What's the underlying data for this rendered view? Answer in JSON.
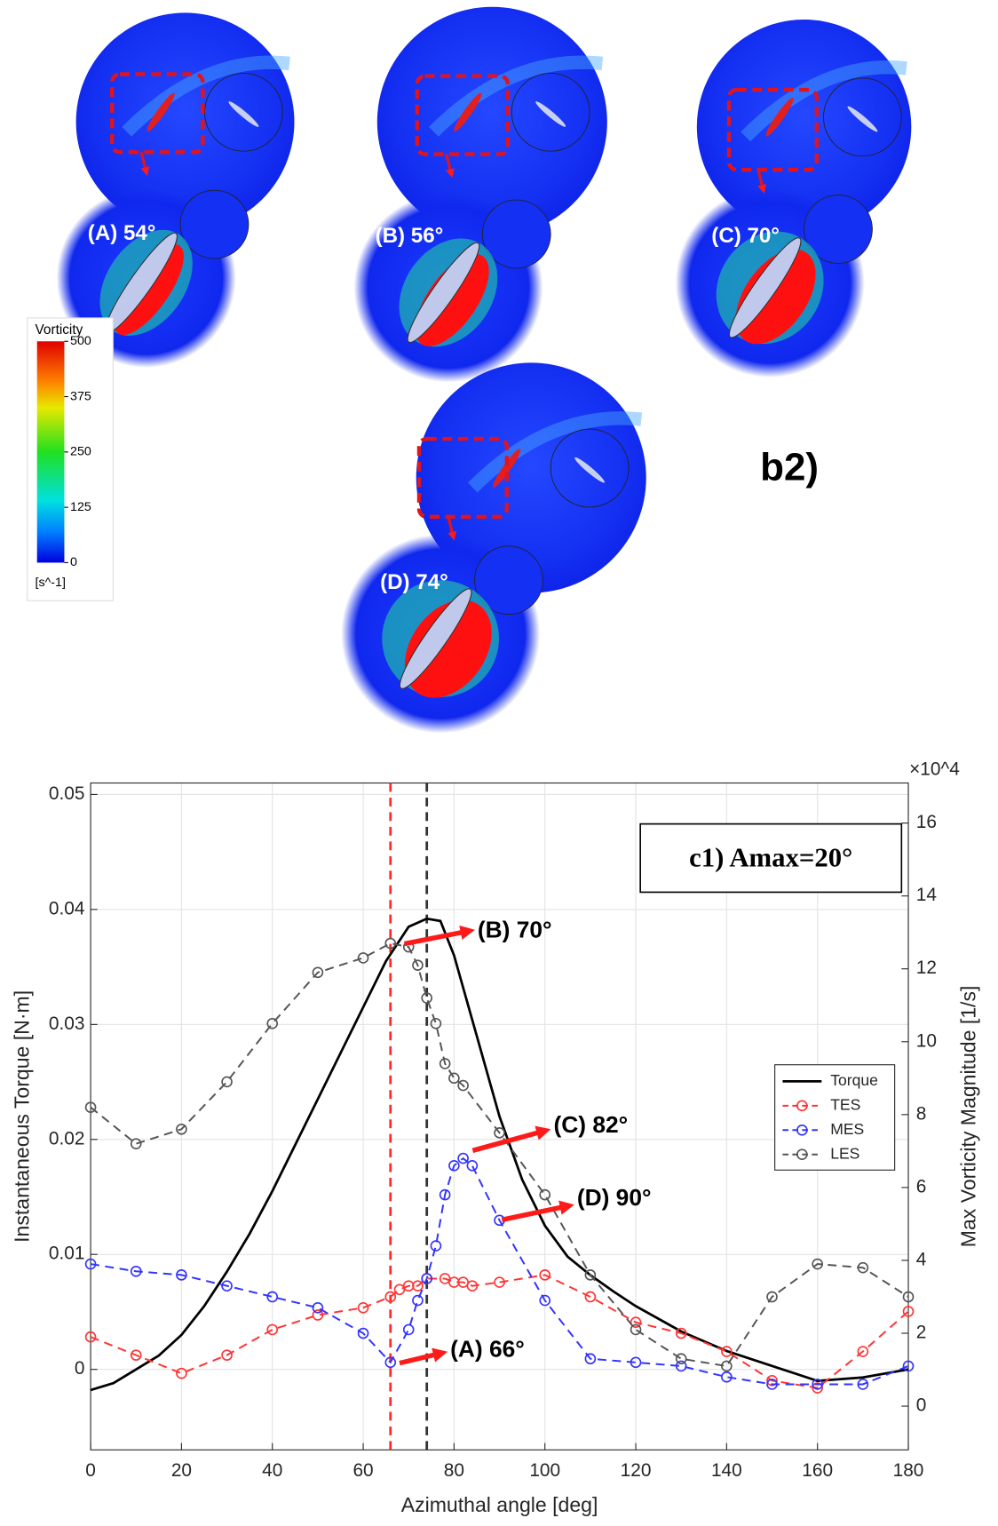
{
  "figure_b2": {
    "panel_label": "b2)",
    "panels": [
      {
        "label": "(A) 54°"
      },
      {
        "label": "(B) 56°"
      },
      {
        "label": "(C) 70°"
      },
      {
        "label": "(D) 74°"
      }
    ],
    "colorbar": {
      "title": "Vorticity",
      "unit": "[s^-1]",
      "lim": [
        0,
        500
      ],
      "ticks": [
        0,
        125,
        250,
        375,
        500
      ]
    }
  },
  "chart_data": {
    "type": "line",
    "annotation_box": "c1) Amax=20°",
    "xlabel": "Azimuthal angle [deg]",
    "ylabel": "Instantaneous Torque [N·m]",
    "y2label": "Max Vorticity Magnitude [1/s]",
    "y2_multiplier": "×10^4",
    "xlim": [
      0,
      180
    ],
    "xticks": [
      0,
      20,
      40,
      60,
      80,
      100,
      120,
      140,
      160,
      180
    ],
    "ylim": [
      -0.007,
      0.051
    ],
    "yticks": [
      0,
      0.01,
      0.02,
      0.03,
      0.04,
      0.05
    ],
    "y2lim": [
      -1.2,
      17.1
    ],
    "y2ticks": [
      0,
      2,
      4,
      6,
      8,
      10,
      12,
      14,
      16
    ],
    "grid": true,
    "legend": "east",
    "vlines": [
      {
        "x": 66,
        "color": "#ff2a2a"
      },
      {
        "x": 74,
        "color": "#333333"
      }
    ],
    "annotations": [
      "(B) 70°",
      "(C) 82°",
      "(D) 90°",
      "(A) 66°"
    ],
    "series": [
      {
        "name": "Torque",
        "color": "#000000",
        "axis": "y",
        "x": [
          0,
          5,
          10,
          15,
          20,
          25,
          30,
          35,
          40,
          45,
          50,
          55,
          60,
          65,
          70,
          74,
          77,
          80,
          85,
          90,
          95,
          100,
          105,
          110,
          115,
          120,
          130,
          140,
          150,
          160,
          170,
          180
        ],
        "values": [
          -0.0018,
          -0.0012,
          0.0,
          0.0012,
          0.003,
          0.0055,
          0.0085,
          0.0118,
          0.0155,
          0.0195,
          0.0235,
          0.0275,
          0.0315,
          0.0355,
          0.0385,
          0.0392,
          0.039,
          0.036,
          0.029,
          0.022,
          0.0165,
          0.0125,
          0.0098,
          0.0082,
          0.0068,
          0.0055,
          0.0033,
          0.0016,
          0.0003,
          -0.001,
          -0.0007,
          0.0
        ]
      },
      {
        "name": "TES",
        "color": "#ff3333",
        "axis": "y2",
        "x": [
          0,
          10,
          20,
          30,
          40,
          50,
          60,
          66,
          68,
          70,
          72,
          74,
          78,
          80,
          82,
          84,
          90,
          100,
          110,
          120,
          130,
          140,
          150,
          160,
          170,
          180
        ],
        "values": [
          1.9,
          1.4,
          0.9,
          1.4,
          2.1,
          2.5,
          2.7,
          3.0,
          3.2,
          3.3,
          3.3,
          3.5,
          3.5,
          3.4,
          3.4,
          3.3,
          3.4,
          3.6,
          3.0,
          2.3,
          2.0,
          1.5,
          0.7,
          0.5,
          1.5,
          2.6
        ]
      },
      {
        "name": "MES",
        "color": "#3333ff",
        "axis": "y2",
        "x": [
          0,
          10,
          20,
          30,
          40,
          50,
          60,
          66,
          70,
          72,
          74,
          76,
          78,
          80,
          82,
          84,
          90,
          100,
          110,
          120,
          130,
          140,
          150,
          160,
          170,
          180
        ],
        "values": [
          3.9,
          3.7,
          3.6,
          3.3,
          3.0,
          2.7,
          2.0,
          1.2,
          2.1,
          2.9,
          3.5,
          4.4,
          5.8,
          6.6,
          6.8,
          6.6,
          5.1,
          2.9,
          1.3,
          1.2,
          1.1,
          0.8,
          0.6,
          0.6,
          0.6,
          1.1
        ]
      },
      {
        "name": "LES",
        "color": "#555555",
        "axis": "y2",
        "x": [
          0,
          10,
          20,
          30,
          40,
          50,
          60,
          66,
          70,
          72,
          74,
          76,
          78,
          80,
          82,
          90,
          100,
          110,
          120,
          130,
          140,
          150,
          160,
          170,
          180
        ],
        "values": [
          8.2,
          7.2,
          7.6,
          8.9,
          10.5,
          11.9,
          12.3,
          12.7,
          12.6,
          12.1,
          11.2,
          10.5,
          9.4,
          9.0,
          8.8,
          7.5,
          5.8,
          3.6,
          2.1,
          1.3,
          1.1,
          3.0,
          3.9,
          3.8,
          3.0
        ]
      }
    ]
  }
}
